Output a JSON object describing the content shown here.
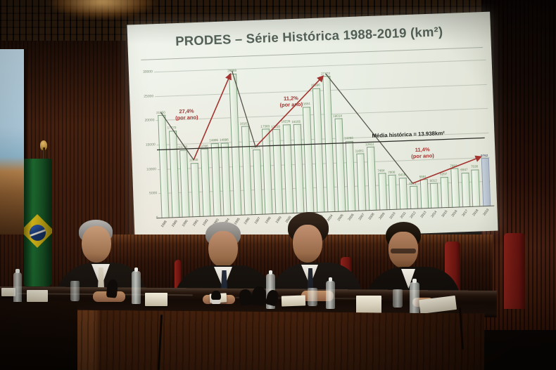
{
  "slide": {
    "title": "PRODES – Série Histórica 1988-2019 (km²)"
  },
  "chart_data": {
    "type": "bar",
    "title": "PRODES – Série Histórica 1988-2019 (km²)",
    "xlabel": "",
    "ylabel": "km²",
    "ylim": [
      0,
      30000
    ],
    "yticks": [
      0,
      5000,
      10000,
      15000,
      20000,
      25000,
      30000
    ],
    "grid": true,
    "legend_position": "none",
    "categories": [
      "1988",
      "1989",
      "1990",
      "1991",
      "1992",
      "1993",
      "1994",
      "1995",
      "1996",
      "1997",
      "1998",
      "1999",
      "2000",
      "2001",
      "2002",
      "2003",
      "2004",
      "2005",
      "2006",
      "2007",
      "2008",
      "2009",
      "2010",
      "2011",
      "2012",
      "2013",
      "2014",
      "2015",
      "2016",
      "2017",
      "2018",
      "2019"
    ],
    "values": [
      21050,
      17770,
      13730,
      11030,
      13786,
      14896,
      14896,
      29059,
      18161,
      13227,
      17383,
      17259,
      18226,
      18165,
      21651,
      25396,
      27772,
      19014,
      14286,
      11651,
      12911,
      7464,
      7000,
      6418,
      4571,
      5891,
      5012,
      6207,
      7893,
      6947,
      7536,
      9762
    ],
    "highlight_last_bar": {
      "year": "2019",
      "style": "blue-gray"
    },
    "mean_line": {
      "label": "Média histórica = 13.938km²",
      "value": 13938
    },
    "annotations": [
      {
        "rate": "27,4%",
        "suffix": "(por ano)",
        "from": "1991",
        "to": "1995",
        "direction": "up"
      },
      {
        "rate": "11,2%",
        "suffix": "(por ano)",
        "from": "1997",
        "to": "2004",
        "direction": "up"
      },
      {
        "rate": "11,4%",
        "suffix": "(por ano)",
        "from": "2012",
        "to": "2019",
        "direction": "up"
      }
    ],
    "decline_segments": [
      {
        "from": "1988",
        "to": "1991"
      },
      {
        "from": "1995",
        "to": "1997"
      },
      {
        "from": "2004",
        "to": "2012"
      }
    ]
  },
  "colors": {
    "annotation_red": "#a33430",
    "trend_dark": "#55554b",
    "mean_line": "#2b2b26",
    "bar_outline": "#7fa07f",
    "bar_fill": "#e7eee2",
    "bar_2019_fill": "#b5c0cc",
    "screen_bg": "#ebefe5",
    "title_text": "#556258",
    "flag_green": "#1d6c30",
    "flag_yellow": "#ddbe18",
    "flag_blue": "#1c3f7c",
    "wall_wood": "#44200f",
    "chair_red": "#7a1a14"
  }
}
